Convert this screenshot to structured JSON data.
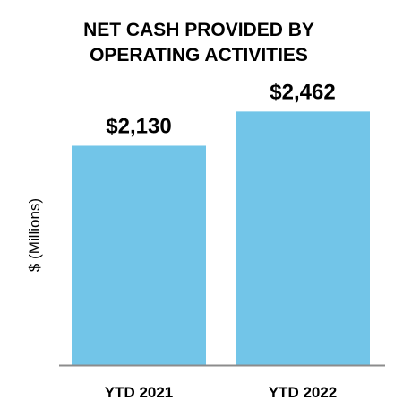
{
  "chart_data": {
    "type": "bar",
    "title_lines": [
      "NET CASH PROVIDED BY",
      "OPERATING ACTIVITIES"
    ],
    "ylabel": "$ (Millions)",
    "xlabel": "",
    "categories": [
      "YTD 2021",
      "YTD 2022"
    ],
    "values": [
      2130,
      2462
    ],
    "value_labels": [
      "$2,130",
      "$2,462"
    ],
    "ylim": [
      0,
      2750
    ],
    "grid": false,
    "legend": "none",
    "bar_color": "#72C5E8",
    "axis_color": "#8C8C8C"
  }
}
